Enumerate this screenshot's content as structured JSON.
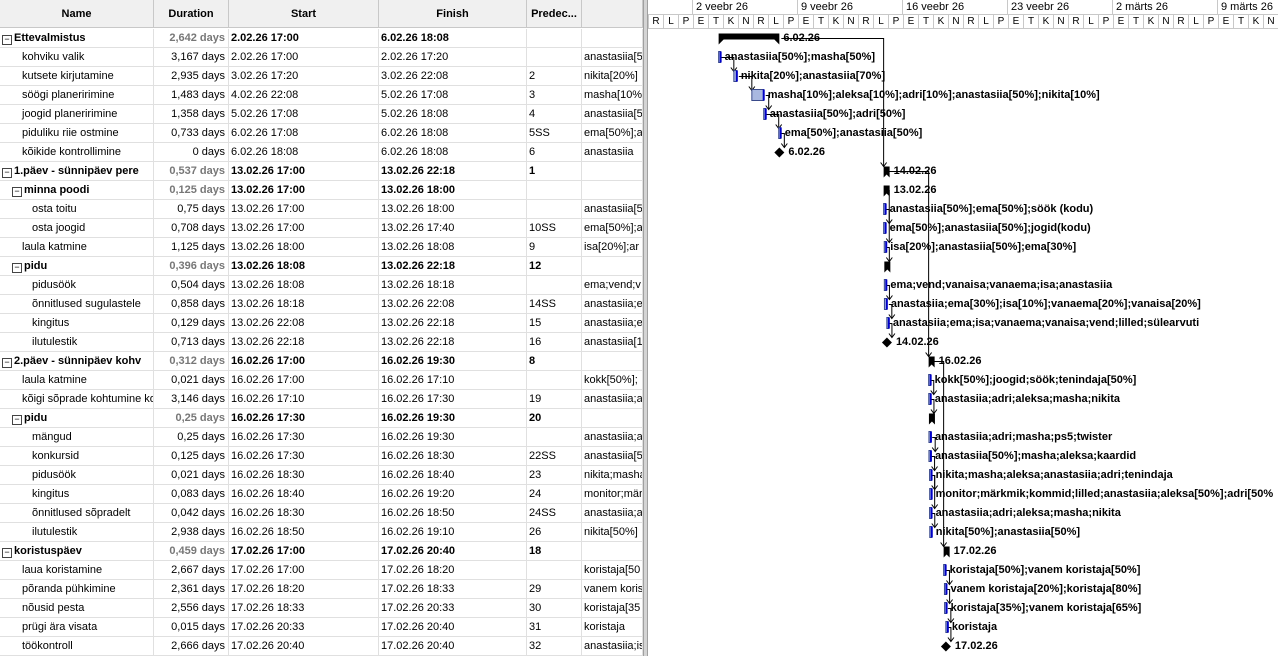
{
  "columns": {
    "name": "Name",
    "duration": "Duration",
    "start": "Start",
    "finish": "Finish",
    "pred": "Predec..."
  },
  "tasks": [
    {
      "name": "Ettevalmistus",
      "dur": "2,642 days",
      "start": "2.02.26 17:00",
      "finish": "6.02.26 18:08",
      "pred": "",
      "res": "",
      "level": 0,
      "summary": true,
      "label": "6.02.26"
    },
    {
      "name": "kohviku valik",
      "dur": "3,167 days",
      "start": "2.02.26 17:00",
      "finish": "2.02.26 17:20",
      "pred": "",
      "res": "anastasiia[5",
      "level": 1,
      "summary": false,
      "label": "anastasiia[50%];masha[50%]"
    },
    {
      "name": "kutsete kirjutamine",
      "dur": "2,935 days",
      "start": "3.02.26 17:20",
      "finish": "3.02.26 22:08",
      "pred": "2",
      "res": "nikita[20%]",
      "level": 1,
      "summary": false,
      "label": "nikita[20%];anastasiia[70%]"
    },
    {
      "name": "söögi planeririmine",
      "dur": "1,483 days",
      "start": "4.02.26 22:08",
      "finish": "5.02.26 17:08",
      "pred": "3",
      "res": "masha[10%",
      "level": 1,
      "summary": false,
      "label": "masha[10%];aleksa[10%];adri[10%];anastasiia[50%];nikita[10%]"
    },
    {
      "name": "joogid planeririmine",
      "dur": "1,358 days",
      "start": "5.02.26 17:08",
      "finish": "5.02.26 18:08",
      "pred": "4",
      "res": "anastasiia[5",
      "level": 1,
      "summary": false,
      "label": "anastasiia[50%];adri[50%]"
    },
    {
      "name": "piduliku riie ostmine",
      "dur": "0,733 days",
      "start": "6.02.26 17:08",
      "finish": "6.02.26 18:08",
      "pred": "5SS",
      "res": "ema[50%];a",
      "level": 1,
      "summary": false,
      "label": "ema[50%];anastasiia[50%]"
    },
    {
      "name": "kõikide kontrollimine",
      "dur": "0 days",
      "start": "6.02.26 18:08",
      "finish": "6.02.26 18:08",
      "pred": "6",
      "res": "anastasiia",
      "level": 1,
      "summary": false,
      "label": "6.02.26"
    },
    {
      "name": "1.päev -  sünnipäev pere",
      "dur": "0,537 days",
      "start": "13.02.26 17:00",
      "finish": "13.02.26 22:18",
      "pred": "1",
      "res": "",
      "level": 0,
      "summary": true,
      "label": "14.02.26"
    },
    {
      "name": "minna poodi",
      "dur": "0,125 days",
      "start": "13.02.26 17:00",
      "finish": "13.02.26 18:00",
      "pred": "",
      "res": "",
      "level": 1,
      "summary": true,
      "label": "13.02.26"
    },
    {
      "name": "osta toitu",
      "dur": "0,75 days",
      "start": "13.02.26 17:00",
      "finish": "13.02.26 18:00",
      "pred": "",
      "res": "anastasiia[5",
      "level": 2,
      "summary": false,
      "label": "anastasiia[50%];ema[50%];söök (kodu)"
    },
    {
      "name": "osta joogid",
      "dur": "0,708 days",
      "start": "13.02.26 17:00",
      "finish": "13.02.26 17:40",
      "pred": "10SS",
      "res": "ema[50%];a",
      "level": 2,
      "summary": false,
      "label": "ema[50%];anastasiia[50%];jogid(kodu)"
    },
    {
      "name": "laula katmine",
      "dur": "1,125 days",
      "start": "13.02.26 18:00",
      "finish": "13.02.26 18:08",
      "pred": "9",
      "res": "isa[20%];ar",
      "level": 1,
      "summary": false,
      "label": "isa[20%];anastasiia[50%];ema[30%]"
    },
    {
      "name": "pidu",
      "dur": "0,396 days",
      "start": "13.02.26 18:08",
      "finish": "13.02.26 22:18",
      "pred": "12",
      "res": "",
      "level": 1,
      "summary": true,
      "label": ""
    },
    {
      "name": "pidusöök",
      "dur": "0,504 days",
      "start": "13.02.26 18:08",
      "finish": "13.02.26 18:18",
      "pred": "",
      "res": "ema;vend;v",
      "level": 2,
      "summary": false,
      "label": "ema;vend;vanaisa;vanaema;isa;anastasiia"
    },
    {
      "name": "õnnitlused sugulastele",
      "dur": "0,858 days",
      "start": "13.02.26 18:18",
      "finish": "13.02.26 22:08",
      "pred": "14SS",
      "res": "anastasiia;e",
      "level": 2,
      "summary": false,
      "label": "anastasiia;ema[30%];isa[10%];vanaema[20%];vanaisa[20%]"
    },
    {
      "name": "kingitus",
      "dur": "0,129 days",
      "start": "13.02.26 22:08",
      "finish": "13.02.26 22:18",
      "pred": "15",
      "res": "anastasiia;e",
      "level": 2,
      "summary": false,
      "label": "anastasiia;ema;isa;vanaema;vanaisa;vend;lilled;sülearvuti"
    },
    {
      "name": "ilutulestik",
      "dur": "0,713 days",
      "start": "13.02.26 22:18",
      "finish": "13.02.26 22:18",
      "pred": "16",
      "res": "anastasiia[1",
      "level": 2,
      "summary": false,
      "label": "14.02.26"
    },
    {
      "name": "2.päev - sünnipäev kohv",
      "dur": "0,312 days",
      "start": "16.02.26 17:00",
      "finish": "16.02.26 19:30",
      "pred": "8",
      "res": "",
      "level": 0,
      "summary": true,
      "label": "16.02.26"
    },
    {
      "name": "laula katmine",
      "dur": "0,021 days",
      "start": "16.02.26 17:00",
      "finish": "16.02.26 17:10",
      "pred": "",
      "res": "kokk[50%];",
      "level": 1,
      "summary": false,
      "label": "kokk[50%];joogid;söök;tenindaja[50%]"
    },
    {
      "name": "kõigi sõprade kohtumine ko",
      "dur": "3,146 days",
      "start": "16.02.26 17:10",
      "finish": "16.02.26 17:30",
      "pred": "19",
      "res": "anastasiia;a",
      "level": 1,
      "summary": false,
      "label": "anastasiia;adri;aleksa;masha;nikita"
    },
    {
      "name": "pidu",
      "dur": "0,25 days",
      "start": "16.02.26 17:30",
      "finish": "16.02.26 19:30",
      "pred": "20",
      "res": "",
      "level": 1,
      "summary": true,
      "label": ""
    },
    {
      "name": "mängud",
      "dur": "0,25 days",
      "start": "16.02.26 17:30",
      "finish": "16.02.26 19:30",
      "pred": "",
      "res": "anastasiia;a",
      "level": 2,
      "summary": false,
      "label": "anastasiia;adri;masha;ps5;twister"
    },
    {
      "name": "konkursid",
      "dur": "0,125 days",
      "start": "16.02.26 17:30",
      "finish": "16.02.26 18:30",
      "pred": "22SS",
      "res": "anastasiia[5",
      "level": 2,
      "summary": false,
      "label": "anastasiia[50%];masha;aleksa;kaardid"
    },
    {
      "name": "pidusöök",
      "dur": "0,021 days",
      "start": "16.02.26 18:30",
      "finish": "16.02.26 18:40",
      "pred": "23",
      "res": "nikita;masha",
      "level": 2,
      "summary": false,
      "label": "nikita;masha;aleksa;anastasiia;adri;tenindaja"
    },
    {
      "name": "kingitus",
      "dur": "0,083 days",
      "start": "16.02.26 18:40",
      "finish": "16.02.26 19:20",
      "pred": "24",
      "res": "monitor;mär",
      "level": 2,
      "summary": false,
      "label": "monitor;märkmik;kommid;lilled;anastasiia;aleksa[50%];adri[50%"
    },
    {
      "name": "õnnitlused sõpradelt",
      "dur": "0,042 days",
      "start": "16.02.26 18:30",
      "finish": "16.02.26 18:50",
      "pred": "24SS",
      "res": "anastasiia;a",
      "level": 2,
      "summary": false,
      "label": "anastasiia;adri;aleksa;masha;nikita"
    },
    {
      "name": "ilutulestik",
      "dur": "2,938 days",
      "start": "16.02.26 18:50",
      "finish": "16.02.26 19:10",
      "pred": "26",
      "res": "nikita[50%]",
      "level": 2,
      "summary": false,
      "label": "nikita[50%];anastasiia[50%]"
    },
    {
      "name": "koristuspäev",
      "dur": "0,459 days",
      "start": "17.02.26 17:00",
      "finish": "17.02.26 20:40",
      "pred": "18",
      "res": "",
      "level": 0,
      "summary": true,
      "label": "17.02.26"
    },
    {
      "name": "laua koristamine",
      "dur": "2,667 days",
      "start": "17.02.26 17:00",
      "finish": "17.02.26 18:20",
      "pred": "",
      "res": "koristaja[50",
      "level": 1,
      "summary": false,
      "label": "koristaja[50%];vanem koristaja[50%]"
    },
    {
      "name": "põranda pühkimine",
      "dur": "2,361 days",
      "start": "17.02.26 18:20",
      "finish": "17.02.26 18:33",
      "pred": "29",
      "res": "vanem koris",
      "level": 1,
      "summary": false,
      "label": "vanem koristaja[20%];koristaja[80%]"
    },
    {
      "name": "nõusid pesta",
      "dur": "2,556 days",
      "start": "17.02.26 18:33",
      "finish": "17.02.26 20:33",
      "pred": "30",
      "res": "koristaja[35",
      "level": 1,
      "summary": false,
      "label": "koristaja[35%];vanem koristaja[65%]"
    },
    {
      "name": "prügi ära visata",
      "dur": "0,015 days",
      "start": "17.02.26 20:33",
      "finish": "17.02.26 20:40",
      "pred": "31",
      "res": "koristaja",
      "level": 1,
      "summary": false,
      "label": "koristaja"
    },
    {
      "name": "töökontroll",
      "dur": "2,666 days",
      "start": "17.02.26 20:40",
      "finish": "17.02.26 20:40",
      "pred": "32",
      "res": "anastasiia;is",
      "level": 1,
      "summary": false,
      "label": "17.02.26"
    }
  ],
  "timeline": {
    "weeks": [
      "2 veebr 26",
      "9 veebr 26",
      "16 veebr 26",
      "23 veebr 26",
      "2 märts 26",
      "9 märts 26"
    ],
    "days": [
      "R",
      "L",
      "P",
      "E",
      "T",
      "K",
      "N",
      "R",
      "L",
      "P",
      "E",
      "T",
      "K",
      "N",
      "R",
      "L",
      "P",
      "E",
      "T",
      "K",
      "N",
      "R",
      "L",
      "P",
      "E",
      "T",
      "K",
      "N",
      "R",
      "L",
      "P",
      "E",
      "T",
      "K",
      "N",
      "R",
      "L",
      "P",
      "E",
      "T",
      "K",
      "N"
    ]
  },
  "colors": {
    "bar_fill": "#a9b8e0",
    "progress": "#0000c8",
    "summary": "#000000"
  }
}
